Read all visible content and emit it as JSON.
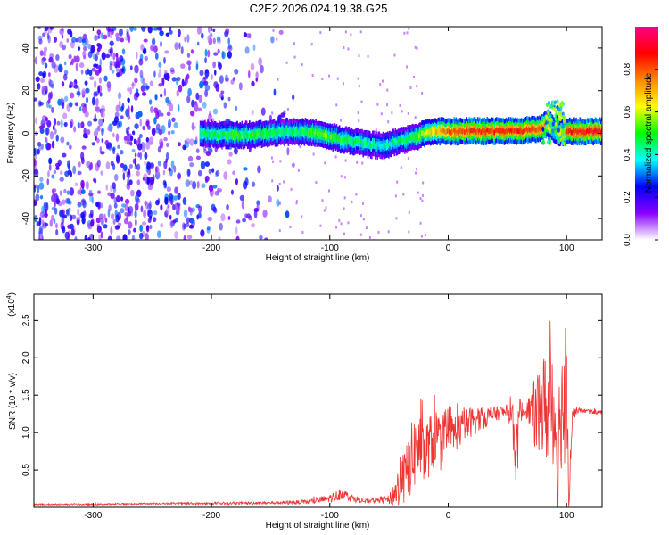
{
  "title": "C2E2.2026.024.19.38.G25",
  "chart_data": [
    {
      "type": "heatmap",
      "xlabel": "Height of straight line (km)",
      "ylabel": "Frequency (Hz)",
      "xlim": [
        -350,
        130
      ],
      "ylim": [
        -50,
        50
      ],
      "xticks": [
        -300,
        -200,
        -100,
        0,
        100
      ],
      "yticks": [
        -40,
        -20,
        0,
        20,
        40
      ],
      "colorbar": {
        "label": "Normalized spectral amplitude",
        "range": [
          0,
          1
        ],
        "ticks": [
          0.0,
          0.2,
          0.4,
          0.6,
          0.8
        ],
        "colors": [
          "#ffffff",
          "#8800ff",
          "#0000ff",
          "#00ffff",
          "#00ff00",
          "#ffff00",
          "#ff8800",
          "#ff0000",
          "#ff0088"
        ]
      },
      "ridge": {
        "x": [
          -210,
          -180,
          -150,
          -130,
          -110,
          -90,
          -70,
          -55,
          -45,
          -30,
          -20,
          -10,
          0,
          20,
          40,
          60,
          75,
          85,
          90,
          95,
          100,
          130
        ],
        "y": [
          0,
          -1,
          0,
          1,
          0,
          -3,
          -5,
          -6,
          -4,
          -2,
          0,
          1,
          1,
          1,
          1,
          1,
          2,
          5,
          1,
          0,
          1,
          1
        ],
        "amplitude": [
          0.45,
          0.5,
          0.5,
          0.45,
          0.55,
          0.5,
          0.45,
          0.4,
          0.45,
          0.5,
          0.6,
          0.7,
          0.8,
          0.85,
          0.85,
          0.85,
          0.8,
          0.75,
          0.6,
          0.65,
          0.85,
          0.9
        ]
      },
      "noise_region": {
        "x": [
          -350,
          -150
        ],
        "amplitude": 0.2
      }
    },
    {
      "type": "line",
      "xlabel": "Height of straight line (km)",
      "ylabel": "SNR (10 * v/v)",
      "scale_note": "(x10",
      "scale_exp": "4",
      "scale_close": ")",
      "xlim": [
        -350,
        130
      ],
      "ylim": [
        0,
        2.85
      ],
      "xticks": [
        -300,
        -200,
        -100,
        0,
        100
      ],
      "yticks": [
        0.5,
        1.0,
        1.5,
        2.0,
        2.5
      ],
      "ytick_labels": [
        "0.5",
        "1.0",
        "1.5",
        "2.0",
        "2.5"
      ],
      "series": [
        {
          "color": "#ee3333",
          "x": [
            -350,
            -300,
            -250,
            -200,
            -150,
            -120,
            -100,
            -90,
            -80,
            -70,
            -60,
            -50,
            -40,
            -35,
            -30,
            -25,
            -20,
            -15,
            -10,
            -5,
            0,
            10,
            20,
            30,
            40,
            50,
            55,
            58,
            60,
            65,
            70,
            75,
            80,
            85,
            88,
            90,
            93,
            95,
            98,
            100,
            102,
            105,
            110,
            120,
            130
          ],
          "y": [
            0.04,
            0.04,
            0.05,
            0.05,
            0.06,
            0.07,
            0.12,
            0.18,
            0.12,
            0.08,
            0.1,
            0.1,
            0.3,
            0.45,
            0.7,
            0.8,
            0.7,
            0.85,
            0.95,
            0.8,
            0.95,
            1.05,
            1.15,
            1.2,
            1.25,
            1.28,
            1.1,
            0.6,
            1.3,
            1.28,
            1.3,
            1.25,
            1.35,
            1.3,
            1.5,
            1.2,
            0.7,
            1.4,
            1.25,
            2.0,
            0.3,
            1.25,
            1.3,
            1.28,
            1.27
          ],
          "noise_amplitude": [
            0.01,
            0.01,
            0.01,
            0.015,
            0.02,
            0.03,
            0.06,
            0.08,
            0.05,
            0.03,
            0.04,
            0.06,
            0.35,
            0.4,
            0.5,
            0.5,
            0.45,
            0.4,
            0.4,
            0.35,
            0.3,
            0.25,
            0.2,
            0.15,
            0.1,
            0.08,
            0.4,
            0.5,
            0.2,
            0.05,
            0.3,
            0.6,
            0.7,
            0.8,
            0.9,
            0.8,
            0.9,
            0.9,
            0.8,
            1.0,
            0.5,
            0.1,
            0.03,
            0.03,
            0.03
          ]
        }
      ]
    }
  ]
}
